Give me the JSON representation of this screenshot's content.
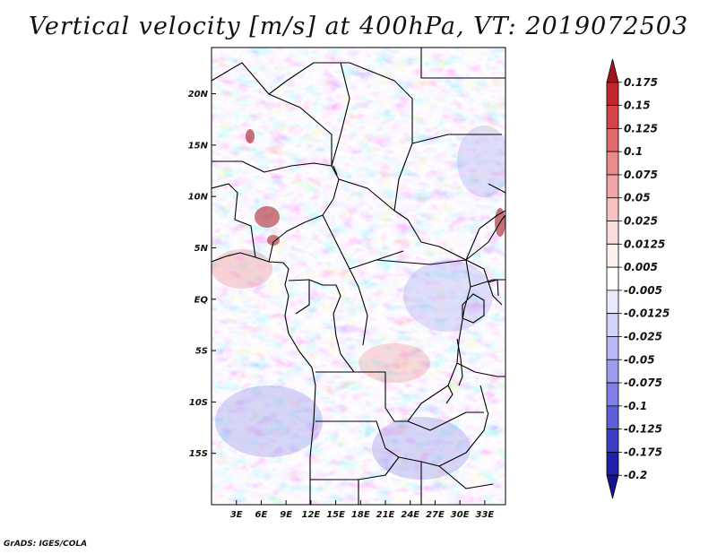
{
  "title": "Vertical velocity [m/s] at 400hPa, VT: 2019072503",
  "credit": "GrADS: IGES/COLA",
  "map": {
    "lon_range": [
      0,
      35.5
    ],
    "lat_range": [
      -20,
      24.5
    ],
    "lon_ticks": [
      "3E",
      "6E",
      "9E",
      "12E",
      "15E",
      "18E",
      "21E",
      "24E",
      "27E",
      "30E",
      "33E"
    ],
    "lat_ticks": [
      "20N",
      "15N",
      "10N",
      "5N",
      "EQ",
      "5S",
      "10S",
      "15S"
    ]
  },
  "colorbar": {
    "labels": [
      "0.175",
      "0.15",
      "0.125",
      "0.1",
      "0.075",
      "0.05",
      "0.025",
      "0.0125",
      "0.005",
      "-0.005",
      "-0.0125",
      "-0.025",
      "-0.05",
      "-0.075",
      "-0.1",
      "-0.125",
      "-0.175",
      "-0.2"
    ],
    "colors": [
      "#a0161c",
      "#c1272d",
      "#d44448",
      "#e06a6c",
      "#e98a8b",
      "#f0a6a6",
      "#f6c2c2",
      "#fbdcdc",
      "#fff0f0",
      "#ffffff",
      "#eaeaff",
      "#d4d4fb",
      "#b8b8f5",
      "#9d9df0",
      "#7f7fe6",
      "#5f5fd8",
      "#3d3dc4",
      "#2020a8",
      "#14148c"
    ]
  }
}
